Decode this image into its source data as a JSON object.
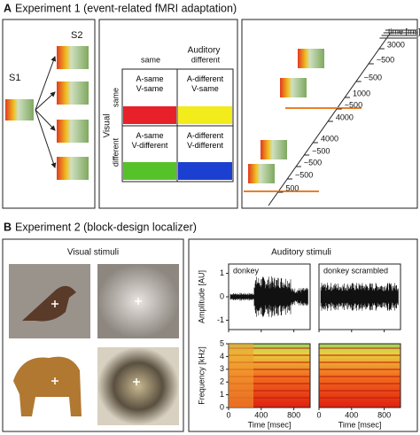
{
  "experiment1": {
    "label": "A",
    "title": "Experiment 1 (event-related fMRI adaptation)",
    "stimuli": {
      "s1": "S1",
      "s2": "S2"
    },
    "design": {
      "auditory": "Auditory",
      "auditory_levels": [
        "same",
        "different"
      ],
      "visual": "Visual",
      "visual_levels": [
        "same",
        "different"
      ],
      "cells": [
        [
          "A-same V-same",
          "A-different V-same"
        ],
        [
          "A-same V-different",
          "A-different V-different"
        ]
      ],
      "cell_colors": [
        [
          "#e8202a",
          "#f2ec1a"
        ],
        [
          "#56c22a",
          "#1b3fd0"
        ]
      ]
    },
    "timeline": {
      "axis_label": "time [ms]",
      "durations": [
        "3000",
        "~500",
        "~500",
        "1000",
        "~500",
        "4000",
        "4000",
        "~500",
        "~500",
        "~500",
        "500"
      ],
      "marker_color": "#e8802a"
    }
  },
  "experiment2": {
    "label": "B",
    "title": "Experiment 2 (block-design localizer)",
    "visual": {
      "title": "Visual stimuli"
    },
    "auditory": {
      "title": "Auditory stimuli",
      "panels": [
        {
          "name": "donkey"
        },
        {
          "name": "donkey scrambled"
        }
      ],
      "amplitude": {
        "label": "Amplitude [AU]",
        "ylim": [
          -1.4,
          1.4
        ],
        "yticks": [
          1,
          0,
          -1
        ]
      },
      "frequency": {
        "label": "Frequency [kHz]",
        "ylim": [
          0,
          5
        ],
        "yticks": [
          0,
          1,
          2,
          3,
          4,
          5
        ]
      },
      "time": {
        "label": "Time [msec]",
        "xlim": [
          0,
          1000
        ],
        "xticks": [
          0,
          400,
          800
        ]
      }
    }
  }
}
